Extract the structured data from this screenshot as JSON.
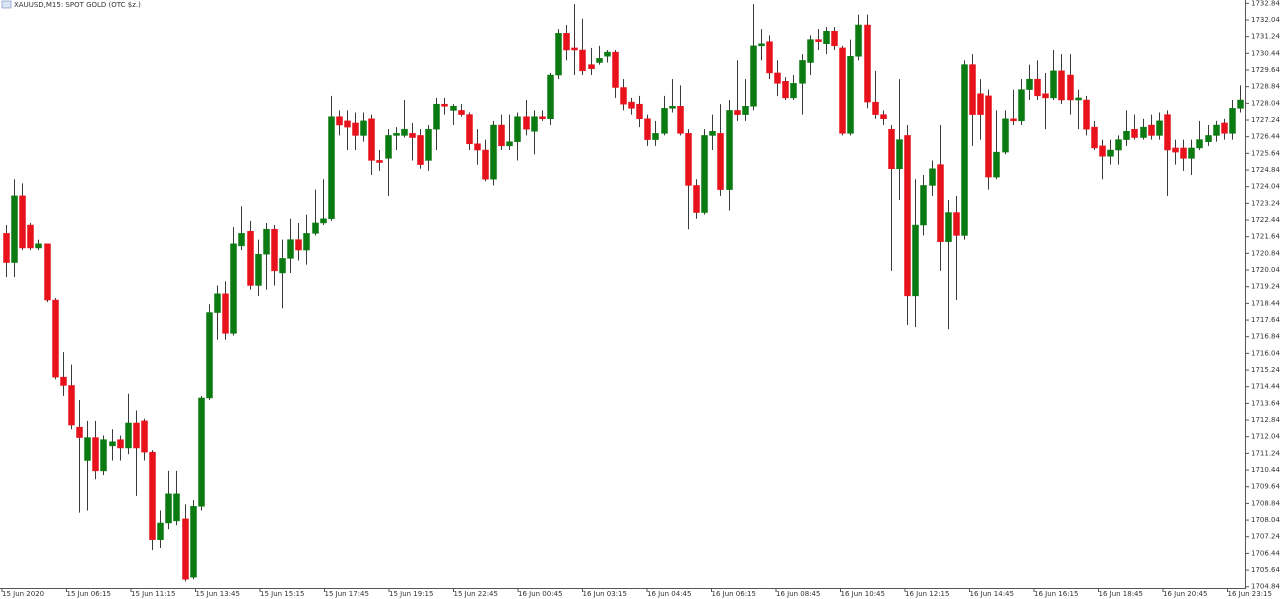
{
  "chart_data": {
    "type": "candlestick",
    "title": "XAUUSD,M15: SPOT GOLD (OTC $z.)",
    "up_color": "#0b7a10",
    "down_color": "#e8121c",
    "wick_color": "#3a3a3a",
    "ylim": [
      1704.78,
      1733.0
    ],
    "yticks": [
      1732.84,
      1732.04,
      1731.24,
      1730.44,
      1729.64,
      1728.84,
      1728.04,
      1727.24,
      1726.44,
      1725.64,
      1724.84,
      1724.04,
      1723.24,
      1722.44,
      1721.64,
      1720.84,
      1720.04,
      1719.24,
      1718.44,
      1717.64,
      1716.84,
      1716.04,
      1715.24,
      1714.44,
      1713.64,
      1712.84,
      1712.04,
      1711.24,
      1710.44,
      1709.64,
      1708.84,
      1708.04,
      1707.24,
      1706.44,
      1705.64,
      1704.84
    ],
    "x_labels": [
      "15 Jun 2020",
      "15 Jun 06:15",
      "15 Jun 11:15",
      "15 Jun 13:45",
      "15 Jun 15:15",
      "15 Jun 17:45",
      "15 Jun 19:15",
      "15 Jun 22:45",
      "16 Jun 00:45",
      "16 Jun 03:15",
      "16 Jun 04:45",
      "16 Jun 06:15",
      "16 Jun 08:45",
      "16 Jun 10:45",
      "16 Jun 12:15",
      "16 Jun 14:45",
      "16 Jun 16:15",
      "16 Jun 18:45",
      "16 Jun 20:45",
      "16 Jun 23:15"
    ],
    "open": [
      1721.8,
      1720.4,
      1723.6,
      1722.2,
      1721.1,
      1721.3,
      1718.6,
      1714.9,
      1714.5,
      1712.5,
      1710.9,
      1712.0,
      1710.4,
      1711.6,
      1711.9,
      1711.5,
      1712.7,
      1712.8,
      1711.3,
      1707.1,
      1707.9,
      1708.0,
      1708.1,
      1705.3,
      1708.7,
      1713.9,
      1718.0,
      1718.9,
      1717.0,
      1721.2,
      1721.9,
      1719.3,
      1720.8,
      1722.0,
      1719.9,
      1720.6,
      1721.5,
      1721.0,
      1721.8,
      1722.3,
      1722.5,
      1727.4,
      1727.2,
      1727.1,
      1726.5,
      1727.3,
      1725.3,
      1725.4,
      1726.5,
      1726.5,
      1726.6,
      1726.5,
      1725.3,
      1726.8,
      1728.0,
      1727.7,
      1727.7,
      1727.5,
      1726.1,
      1725.8,
      1724.4,
      1727.0,
      1726.0,
      1726.2,
      1727.4,
      1726.7,
      1727.4,
      1727.3,
      1729.4,
      1731.4,
      1730.7,
      1730.6,
      1729.9,
      1730.0,
      1730.3,
      1730.5,
      1728.8,
      1728.1,
      1728.0,
      1727.3,
      1726.3,
      1726.6,
      1727.8,
      1727.9,
      1726.6,
      1724.1,
      1722.8,
      1726.5,
      1726.6,
      1723.9,
      1727.7,
      1727.5,
      1727.9,
      1730.8,
      1731.0,
      1729.5,
      1729.1,
      1728.3,
      1729.0,
      1730.0,
      1731.1,
      1730.9,
      1731.5,
      1730.7,
      1726.6,
      1730.3,
      1731.8,
      1728.1,
      1727.5,
      1726.8,
      1724.9,
      1726.5,
      1718.8,
      1722.2,
      1724.1,
      1725.1,
      1721.4,
      1722.8,
      1721.7,
      1729.9,
      1728.5,
      1728.4,
      1724.5,
      1725.7,
      1727.3,
      1727.2,
      1728.7,
      1729.2,
      1728.5,
      1728.3,
      1729.6,
      1729.4,
      1728.2,
      1728.2,
      1726.9,
      1726.0,
      1725.5,
      1725.8,
      1726.3,
      1726.8,
      1726.4,
      1727.0,
      1726.5,
      1727.5,
      1725.9,
      1725.9,
      1725.4,
      1725.9,
      1726.2,
      1726.5,
      1727.1,
      1726.6,
      1727.8
    ],
    "high": [
      1722.2,
      1724.4,
      1724.2,
      1722.3,
      1721.5,
      1721.3,
      1718.7,
      1716.1,
      1715.5,
      1713.8,
      1712.8,
      1712.8,
      1712.1,
      1712.4,
      1712.1,
      1714.1,
      1713.3,
      1712.9,
      1711.4,
      1708.5,
      1710.4,
      1710.4,
      1708.8,
      1709.0,
      1714.0,
      1718.4,
      1719.3,
      1719.5,
      1722.1,
      1723.1,
      1722.4,
      1721.5,
      1722.3,
      1722.2,
      1721.5,
      1722.5,
      1722.3,
      1722.7,
      1723.9,
      1724.4,
      1728.4,
      1727.7,
      1727.7,
      1727.6,
      1727.6,
      1727.5,
      1725.8,
      1726.8,
      1726.9,
      1728.2,
      1727.1,
      1726.8,
      1727.0,
      1728.3,
      1728.3,
      1728.0,
      1728.0,
      1727.6,
      1726.8,
      1726.3,
      1727.2,
      1727.5,
      1727.5,
      1727.6,
      1728.2,
      1727.7,
      1727.7,
      1729.5,
      1731.6,
      1731.8,
      1732.8,
      1732.1,
      1730.7,
      1730.8,
      1730.6,
      1730.6,
      1729.2,
      1728.3,
      1728.4,
      1727.5,
      1727.2,
      1728.4,
      1729.2,
      1728.9,
      1726.8,
      1724.4,
      1726.8,
      1727.5,
      1728.0,
      1728.2,
      1730.1,
      1729.2,
      1732.8,
      1731.6,
      1731.3,
      1730.1,
      1729.3,
      1729.4,
      1730.4,
      1731.3,
      1731.6,
      1731.7,
      1731.7,
      1730.8,
      1731.1,
      1732.3,
      1732.3,
      1729.6,
      1727.7,
      1727.0,
      1729.2,
      1727.0,
      1724.4,
      1724.6,
      1725.3,
      1727.0,
      1723.4,
      1723.6,
      1730.1,
      1730.4,
      1729.2,
      1728.7,
      1727.7,
      1727.7,
      1728.7,
      1729.2,
      1729.9,
      1730.1,
      1729.5,
      1730.6,
      1730.4,
      1730.4,
      1728.7,
      1728.4,
      1727.2,
      1726.3,
      1726.3,
      1726.5,
      1727.7,
      1727.5,
      1727.3,
      1727.5,
      1727.6,
      1727.7,
      1726.3,
      1726.3,
      1726.3,
      1727.2,
      1727.0,
      1727.2,
      1727.3,
      1728.2,
      1728.9
    ],
    "low": [
      1719.7,
      1719.7,
      1721.0,
      1721.0,
      1721.0,
      1718.5,
      1714.8,
      1714.0,
      1712.4,
      1708.4,
      1708.5,
      1710.0,
      1710.2,
      1710.9,
      1710.9,
      1711.2,
      1709.2,
      1710.9,
      1706.6,
      1706.7,
      1707.6,
      1707.8,
      1705.1,
      1705.2,
      1708.5,
      1713.8,
      1716.7,
      1716.7,
      1716.9,
      1721.0,
      1719.1,
      1718.8,
      1719.1,
      1719.3,
      1718.2,
      1719.9,
      1720.5,
      1720.3,
      1721.7,
      1722.2,
      1722.4,
      1726.5,
      1725.8,
      1725.8,
      1726.2,
      1724.6,
      1724.8,
      1723.6,
      1725.8,
      1726.4,
      1725.3,
      1724.9,
      1724.8,
      1725.8,
      1727.5,
      1727.0,
      1727.4,
      1725.8,
      1725.1,
      1724.3,
      1724.1,
      1725.8,
      1725.8,
      1725.3,
      1726.5,
      1725.6,
      1727.2,
      1727.0,
      1729.2,
      1730.1,
      1729.4,
      1729.4,
      1729.4,
      1729.9,
      1730.0,
      1728.3,
      1727.7,
      1727.5,
      1726.9,
      1726.0,
      1726.0,
      1726.5,
      1727.6,
      1726.5,
      1722.0,
      1722.5,
      1722.7,
      1725.8,
      1723.6,
      1722.9,
      1727.2,
      1727.2,
      1727.7,
      1730.1,
      1729.2,
      1728.4,
      1728.2,
      1728.2,
      1727.5,
      1729.4,
      1730.6,
      1730.4,
      1730.6,
      1726.5,
      1726.5,
      1730.1,
      1727.8,
      1727.3,
      1727.0,
      1720.0,
      1723.4,
      1717.4,
      1717.3,
      1721.7,
      1723.6,
      1720.0,
      1717.2,
      1718.6,
      1721.5,
      1726.0,
      1726.3,
      1723.9,
      1724.4,
      1725.6,
      1727.0,
      1727.0,
      1728.2,
      1728.2,
      1726.8,
      1728.2,
      1728.0,
      1727.5,
      1726.8,
      1726.5,
      1725.8,
      1724.4,
      1725.1,
      1725.1,
      1726.0,
      1726.3,
      1726.3,
      1726.3,
      1726.3,
      1723.6,
      1725.1,
      1724.8,
      1724.6,
      1725.8,
      1726.0,
      1726.2,
      1726.3,
      1726.3,
      1727.6
    ],
    "close": [
      1720.4,
      1723.6,
      1721.1,
      1721.1,
      1721.3,
      1718.6,
      1714.9,
      1714.5,
      1712.6,
      1712.0,
      1712.0,
      1710.4,
      1711.9,
      1711.8,
      1711.5,
      1712.7,
      1711.5,
      1711.3,
      1707.1,
      1707.9,
      1709.3,
      1709.3,
      1705.2,
      1708.7,
      1713.9,
      1718.0,
      1718.9,
      1717.0,
      1721.3,
      1721.8,
      1719.3,
      1720.8,
      1722.0,
      1720.0,
      1720.6,
      1721.5,
      1721.0,
      1721.8,
      1722.3,
      1722.5,
      1727.4,
      1727.0,
      1726.9,
      1726.5,
      1727.2,
      1725.3,
      1725.2,
      1726.5,
      1726.6,
      1726.8,
      1726.4,
      1725.1,
      1726.8,
      1728.0,
      1727.9,
      1727.9,
      1727.5,
      1726.1,
      1725.8,
      1724.4,
      1727.0,
      1726.0,
      1726.2,
      1727.4,
      1726.8,
      1727.4,
      1727.3,
      1729.4,
      1731.4,
      1730.6,
      1730.6,
      1729.6,
      1729.7,
      1730.2,
      1730.5,
      1728.8,
      1728.0,
      1727.8,
      1727.3,
      1726.3,
      1726.6,
      1727.8,
      1727.9,
      1726.6,
      1724.1,
      1722.8,
      1726.5,
      1726.7,
      1723.9,
      1727.7,
      1727.5,
      1727.9,
      1730.8,
      1730.9,
      1729.5,
      1729.0,
      1728.3,
      1729.0,
      1730.1,
      1731.1,
      1731.0,
      1731.5,
      1730.8,
      1726.6,
      1730.3,
      1731.8,
      1728.1,
      1727.5,
      1727.3,
      1724.9,
      1726.3,
      1718.8,
      1722.2,
      1724.1,
      1724.9,
      1721.4,
      1722.8,
      1721.7,
      1729.9,
      1727.5,
      1727.5,
      1724.5,
      1725.7,
      1727.3,
      1727.2,
      1728.7,
      1729.2,
      1728.4,
      1728.3,
      1729.6,
      1728.2,
      1728.2,
      1728.3,
      1726.8,
      1725.9,
      1725.5,
      1725.8,
      1726.3,
      1726.7,
      1726.4,
      1726.9,
      1726.5,
      1727.2,
      1725.8,
      1725.7,
      1725.4,
      1725.9,
      1726.3,
      1726.5,
      1727.0,
      1726.6,
      1727.8,
      1728.2
    ]
  }
}
